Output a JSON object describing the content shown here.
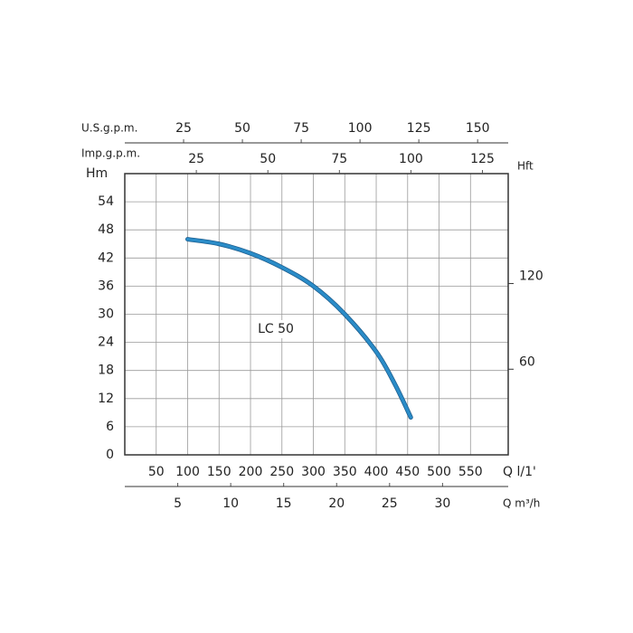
{
  "chart_data": {
    "type": "line",
    "y_label": "Hm",
    "x_label": "Q l/1'",
    "xlim": [
      0,
      610
    ],
    "ylim": [
      0,
      60
    ],
    "xticks": [
      50,
      100,
      150,
      200,
      250,
      300,
      350,
      400,
      450,
      500,
      550
    ],
    "yticks": [
      0,
      6,
      12,
      18,
      24,
      30,
      36,
      42,
      48,
      54
    ],
    "grid": true,
    "series": [
      {
        "name": "LC 50",
        "color": "#2a8cc8",
        "x": [
          100,
          150,
          200,
          250,
          300,
          350,
          400,
          430,
          455
        ],
        "values": [
          46,
          45,
          43,
          40,
          36,
          30,
          22,
          15,
          8
        ]
      }
    ],
    "secondary_axes": [
      {
        "label": "U.S.g.p.m.",
        "position": "top",
        "lim": [
          0,
          163
        ],
        "ticks": [
          25,
          50,
          75,
          100,
          125,
          150
        ]
      },
      {
        "label": "Imp.g.p.m.",
        "position": "top",
        "lim": [
          0,
          134
        ],
        "ticks": [
          25,
          50,
          75,
          100,
          125
        ]
      },
      {
        "label": "Q m³/h",
        "position": "bottom",
        "lim": [
          0,
          36.2
        ],
        "ticks": [
          5,
          10,
          15,
          20,
          25,
          30
        ]
      },
      {
        "label": "Hft",
        "position": "right",
        "lim": [
          0,
          197
        ],
        "ticks": [
          60,
          120
        ]
      }
    ]
  }
}
